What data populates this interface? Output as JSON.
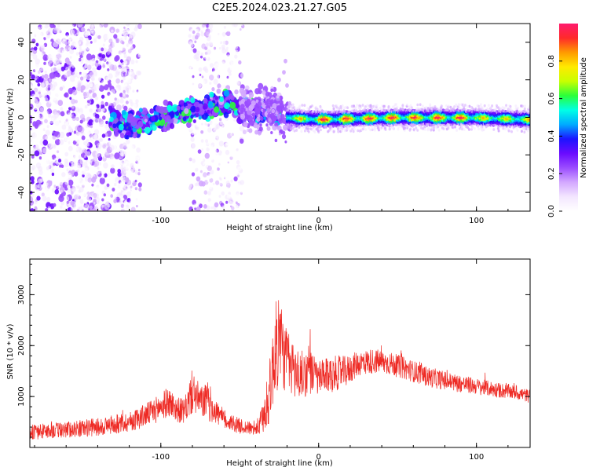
{
  "figure": {
    "title": "C2E5.2024.023.21.27.G05"
  },
  "colors": {
    "snr_line": "#ee2a24",
    "scale": [
      "#ffffff",
      "#f3e6ff",
      "#d3a8ff",
      "#9b4dff",
      "#6a0bff",
      "#1c14ff",
      "#00aaff",
      "#00ffe6",
      "#2aff3a",
      "#c8ff00",
      "#ffea00",
      "#ff9a00",
      "#ff2a2a",
      "#ff1a6e"
    ]
  },
  "chart_data": [
    {
      "type": "heatmap",
      "xlabel": "Height of straight line (km)",
      "ylabel": "Frequency (Hz)",
      "xlim": [
        -183,
        134
      ],
      "ylim": [
        -50,
        50
      ],
      "xticks": [
        -100,
        0,
        100
      ],
      "yticks": [
        -40,
        -20,
        0,
        20,
        40
      ],
      "colorbar": {
        "label": "Normalized spectral amplitude",
        "range": [
          0,
          1
        ],
        "ticks": [
          "0.0",
          "0.2",
          "0.4",
          "0.6",
          "0.8"
        ]
      },
      "ridge": [
        {
          "x": -130,
          "y": -3
        },
        {
          "x": -120,
          "y": -4
        },
        {
          "x": -110,
          "y": -2
        },
        {
          "x": -100,
          "y": 0
        },
        {
          "x": -90,
          "y": 2
        },
        {
          "x": -80,
          "y": 4
        },
        {
          "x": -70,
          "y": 6
        },
        {
          "x": -60,
          "y": 8
        },
        {
          "x": -50,
          "y": 5
        },
        {
          "x": -40,
          "y": 3
        },
        {
          "x": -30,
          "y": 5
        },
        {
          "x": -20,
          "y": 0
        },
        {
          "x": 0,
          "y": -1
        },
        {
          "x": 50,
          "y": 0
        },
        {
          "x": 100,
          "y": 0
        },
        {
          "x": 134,
          "y": -1
        }
      ],
      "grid": false
    },
    {
      "type": "line",
      "xlabel": "Height of straight line (km)",
      "ylabel": "SNR (10 * v/v)",
      "xlim": [
        -183,
        134
      ],
      "ylim": [
        0,
        3700
      ],
      "xticks": [
        -100,
        0,
        100
      ],
      "yticks": [
        1000,
        2000,
        3000
      ],
      "series": [
        {
          "x": [
            -183,
            -160,
            -140,
            -120,
            -105,
            -95,
            -90,
            -85,
            -80,
            -75,
            -70,
            -65,
            -60,
            -50,
            -40,
            -36,
            -32,
            -28,
            -25,
            -22,
            -18,
            -12,
            -6,
            0,
            5,
            10,
            18,
            25,
            35,
            45,
            55,
            70,
            85,
            100,
            115,
            125,
            134
          ],
          "y": [
            300,
            350,
            400,
            500,
            700,
            900,
            750,
            700,
            1100,
            900,
            900,
            700,
            550,
            420,
            350,
            500,
            900,
            1800,
            2200,
            1800,
            1600,
            1400,
            1500,
            1350,
            1400,
            1450,
            1500,
            1650,
            1700,
            1650,
            1550,
            1380,
            1280,
            1200,
            1120,
            1080,
            1000
          ],
          "y_spread": [
            150,
            160,
            180,
            200,
            250,
            300,
            250,
            250,
            450,
            300,
            400,
            250,
            200,
            150,
            120,
            300,
            500,
            900,
            1000,
            700,
            600,
            500,
            450,
            350,
            350,
            350,
            300,
            250,
            250,
            230,
            220,
            200,
            180,
            160,
            150,
            140,
            130
          ],
          "color": "#ee2a24"
        }
      ],
      "grid": false
    }
  ]
}
